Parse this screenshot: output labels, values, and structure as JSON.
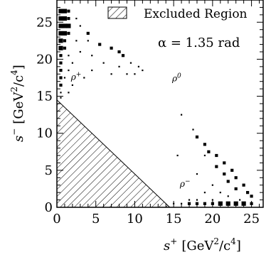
{
  "chart_data": {
    "type": "scatter",
    "title": "",
    "xlabel": {
      "main": "s",
      "sup": "+",
      "unit_pre": "[GeV",
      "unit_sup1": "2",
      "unit_mid": "/c",
      "unit_sup2": "4",
      "unit_post": "]"
    },
    "ylabel": {
      "main": "s",
      "sup": "−",
      "unit_pre": "[GeV",
      "unit_sup1": "2",
      "unit_mid": "/c",
      "unit_sup2": "4",
      "unit_post": "]"
    },
    "xlim": [
      0,
      26.5
    ],
    "ylim": [
      0,
      28
    ],
    "xticks": [
      "0",
      "5",
      "10",
      "15",
      "20",
      "25"
    ],
    "xtick_values": [
      0,
      5,
      10,
      15,
      20,
      25
    ],
    "yticks": [
      "0",
      "5",
      "10",
      "15",
      "20",
      "25"
    ],
    "ytick_values": [
      0,
      5,
      10,
      15,
      20,
      25
    ],
    "legend": {
      "entry": "Excluded Region",
      "placement": "top-right"
    },
    "annotation": "α = 1.35 rad",
    "region_labels": [
      {
        "text": "ρ+",
        "x": 1.8,
        "y": 17.2
      },
      {
        "text": "ρ0",
        "x": 14.8,
        "y": 17.0
      },
      {
        "text": "ρ−",
        "x": 15.8,
        "y": 2.8
      }
    ],
    "excluded_region": [
      [
        0,
        0
      ],
      [
        0,
        14.5
      ],
      [
        14.5,
        0
      ]
    ],
    "boxes": [
      {
        "x": 0.5,
        "y": 26.5,
        "s": 3
      },
      {
        "x": 1.0,
        "y": 26.5,
        "s": 3
      },
      {
        "x": 1.5,
        "y": 26.5,
        "s": 2
      },
      {
        "x": 0.5,
        "y": 25.5,
        "s": 3
      },
      {
        "x": 1.0,
        "y": 25.5,
        "s": 3
      },
      {
        "x": 1.5,
        "y": 25.5,
        "s": 2
      },
      {
        "x": 2.5,
        "y": 25.5,
        "s": 1
      },
      {
        "x": 0.5,
        "y": 24.5,
        "s": 3
      },
      {
        "x": 1.0,
        "y": 24.5,
        "s": 3
      },
      {
        "x": 1.5,
        "y": 24.5,
        "s": 3
      },
      {
        "x": 3.0,
        "y": 24.5,
        "s": 1
      },
      {
        "x": 0.5,
        "y": 23.5,
        "s": 3
      },
      {
        "x": 1.0,
        "y": 23.5,
        "s": 3
      },
      {
        "x": 1.5,
        "y": 23.5,
        "s": 2
      },
      {
        "x": 4.0,
        "y": 23.5,
        "s": 2
      },
      {
        "x": 0.5,
        "y": 22.5,
        "s": 3
      },
      {
        "x": 1.0,
        "y": 22.5,
        "s": 2
      },
      {
        "x": 2.5,
        "y": 22.5,
        "s": 1
      },
      {
        "x": 4.0,
        "y": 22.5,
        "s": 1
      },
      {
        "x": 5.5,
        "y": 22.0,
        "s": 2
      },
      {
        "x": 0.5,
        "y": 21.5,
        "s": 3
      },
      {
        "x": 1.0,
        "y": 21.5,
        "s": 2
      },
      {
        "x": 3.0,
        "y": 21.0,
        "s": 1
      },
      {
        "x": 7.0,
        "y": 21.5,
        "s": 2
      },
      {
        "x": 8.0,
        "y": 21.0,
        "s": 2
      },
      {
        "x": 0.5,
        "y": 20.5,
        "s": 2
      },
      {
        "x": 1.5,
        "y": 20.5,
        "s": 1
      },
      {
        "x": 4.5,
        "y": 20.5,
        "s": 1
      },
      {
        "x": 8.5,
        "y": 20.5,
        "s": 2
      },
      {
        "x": 9.5,
        "y": 19.5,
        "s": 1
      },
      {
        "x": 0.5,
        "y": 19.5,
        "s": 2
      },
      {
        "x": 2.0,
        "y": 19.5,
        "s": 1
      },
      {
        "x": 6.0,
        "y": 19.5,
        "s": 1
      },
      {
        "x": 8.0,
        "y": 19.0,
        "s": 1
      },
      {
        "x": 10.5,
        "y": 19.0,
        "s": 1
      },
      {
        "x": 0.5,
        "y": 18.5,
        "s": 2
      },
      {
        "x": 1.5,
        "y": 18.5,
        "s": 1
      },
      {
        "x": 4.5,
        "y": 18.5,
        "s": 1
      },
      {
        "x": 9.0,
        "y": 18.0,
        "s": 1
      },
      {
        "x": 10.0,
        "y": 18.0,
        "s": 1
      },
      {
        "x": 11.0,
        "y": 18.5,
        "s": 1
      },
      {
        "x": 0.5,
        "y": 17.5,
        "s": 2
      },
      {
        "x": 1.0,
        "y": 17.5,
        "s": 1
      },
      {
        "x": 7.0,
        "y": 18.0,
        "s": 1
      },
      {
        "x": 0.5,
        "y": 16.5,
        "s": 2
      },
      {
        "x": 2.0,
        "y": 16.5,
        "s": 1
      },
      {
        "x": 3.5,
        "y": 17.5,
        "s": 1
      },
      {
        "x": 0.5,
        "y": 15.5,
        "s": 1
      },
      {
        "x": 1.5,
        "y": 15.5,
        "s": 1
      },
      {
        "x": 0.5,
        "y": 14.8,
        "s": 1
      },
      {
        "x": 16.0,
        "y": 12.5,
        "s": 1
      },
      {
        "x": 17.5,
        "y": 10.5,
        "s": 1
      },
      {
        "x": 18.0,
        "y": 9.5,
        "s": 2
      },
      {
        "x": 19.0,
        "y": 8.5,
        "s": 2
      },
      {
        "x": 19.5,
        "y": 7.5,
        "s": 2
      },
      {
        "x": 20.5,
        "y": 7.0,
        "s": 2
      },
      {
        "x": 19.0,
        "y": 7.0,
        "s": 1
      },
      {
        "x": 15.5,
        "y": 7.0,
        "s": 1
      },
      {
        "x": 21.5,
        "y": 6.0,
        "s": 2
      },
      {
        "x": 20.5,
        "y": 5.5,
        "s": 2
      },
      {
        "x": 22.5,
        "y": 5.0,
        "s": 2
      },
      {
        "x": 21.5,
        "y": 4.5,
        "s": 2
      },
      {
        "x": 18.0,
        "y": 4.5,
        "s": 1
      },
      {
        "x": 23.0,
        "y": 4.0,
        "s": 2
      },
      {
        "x": 22.0,
        "y": 3.5,
        "s": 2
      },
      {
        "x": 20.0,
        "y": 3.0,
        "s": 1
      },
      {
        "x": 24.0,
        "y": 3.0,
        "s": 2
      },
      {
        "x": 23.0,
        "y": 2.5,
        "s": 2
      },
      {
        "x": 21.0,
        "y": 2.0,
        "s": 1
      },
      {
        "x": 19.0,
        "y": 2.0,
        "s": 1
      },
      {
        "x": 24.5,
        "y": 2.0,
        "s": 2
      },
      {
        "x": 25.0,
        "y": 1.5,
        "s": 2
      },
      {
        "x": 22.0,
        "y": 1.5,
        "s": 1
      },
      {
        "x": 17.0,
        "y": 1.0,
        "s": 1
      },
      {
        "x": 18.0,
        "y": 1.0,
        "s": 1
      },
      {
        "x": 20.0,
        "y": 1.0,
        "s": 1
      },
      {
        "x": 23.5,
        "y": 1.0,
        "s": 1
      },
      {
        "x": 17.0,
        "y": 0.5,
        "s": 2
      },
      {
        "x": 18.0,
        "y": 0.5,
        "s": 2
      },
      {
        "x": 19.0,
        "y": 0.5,
        "s": 2
      },
      {
        "x": 20.0,
        "y": 0.5,
        "s": 2
      },
      {
        "x": 21.0,
        "y": 0.5,
        "s": 3
      },
      {
        "x": 22.0,
        "y": 0.5,
        "s": 3
      },
      {
        "x": 23.0,
        "y": 0.5,
        "s": 3
      },
      {
        "x": 24.0,
        "y": 0.5,
        "s": 3
      },
      {
        "x": 25.0,
        "y": 0.5,
        "s": 2
      },
      {
        "x": 15.0,
        "y": 0.5,
        "s": 1
      },
      {
        "x": 16.0,
        "y": 0.5,
        "s": 1
      }
    ]
  }
}
